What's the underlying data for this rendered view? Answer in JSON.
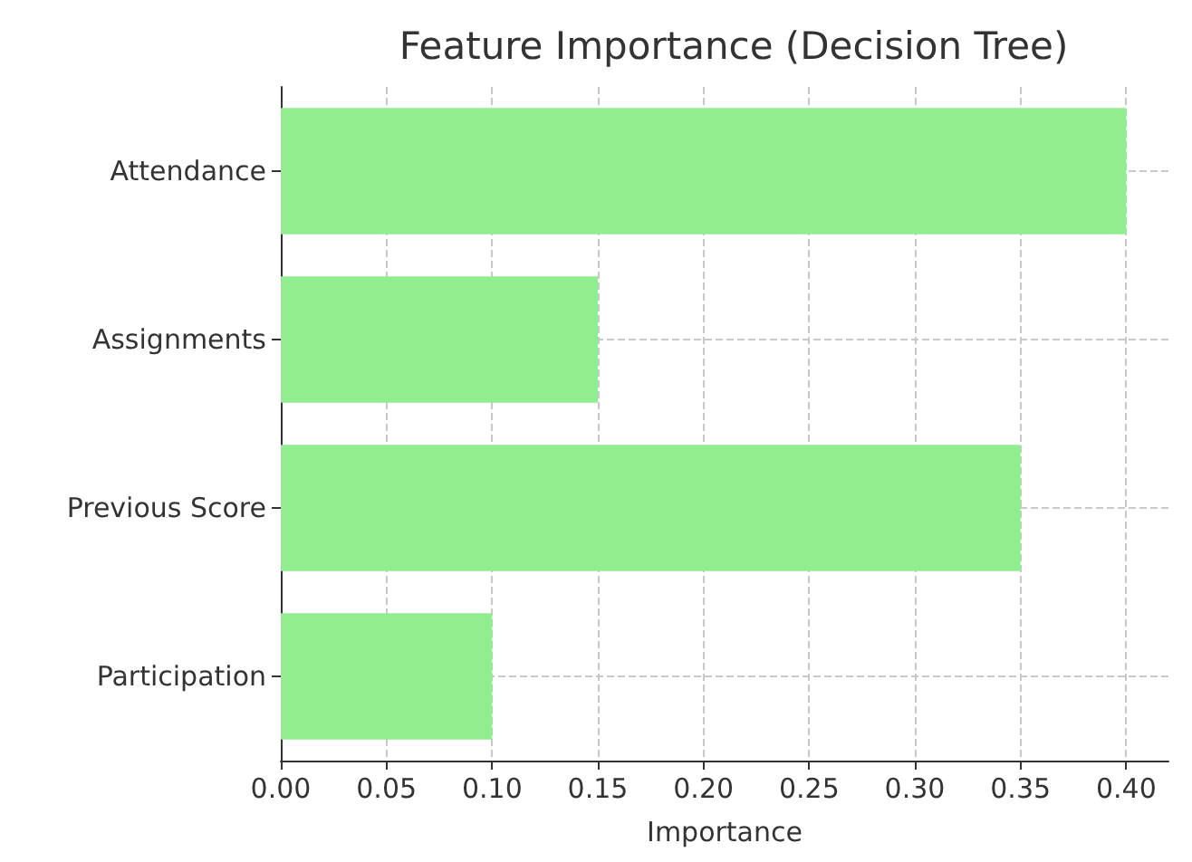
{
  "chart_data": {
    "type": "bar",
    "orientation": "horizontal",
    "title": "Feature Importance (Decision Tree)",
    "xlabel": "Importance",
    "categories": [
      "Attendance",
      "Assignments",
      "Previous Score",
      "Participation"
    ],
    "values": [
      0.4,
      0.15,
      0.35,
      0.1
    ],
    "color": "#90ee90",
    "xlim": [
      0,
      0.42
    ],
    "xticks": [
      {
        "value": 0,
        "label": "0.00"
      },
      {
        "value": 0.05,
        "label": "0.05"
      },
      {
        "value": 0.1,
        "label": "0.10"
      },
      {
        "value": 0.15,
        "label": "0.15"
      },
      {
        "value": 0.2,
        "label": "0.20"
      },
      {
        "value": 0.25,
        "label": "0.25"
      },
      {
        "value": 0.3,
        "label": "0.30"
      },
      {
        "value": 0.35,
        "label": "0.35"
      },
      {
        "value": 0.4,
        "label": "0.40"
      }
    ],
    "grid": true
  }
}
